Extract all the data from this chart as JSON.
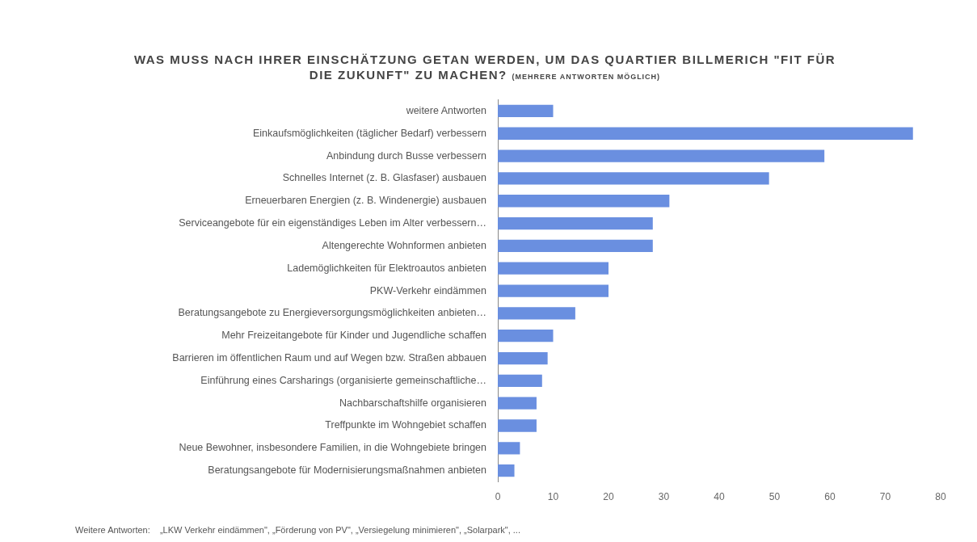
{
  "chart_data": {
    "type": "bar",
    "orientation": "horizontal",
    "title": "WAS MUSS NACH IHRER EINSCHÄTZUNG GETAN WERDEN, UM DAS QUARTIER BILLMERICH \"FIT FÜR DIE ZUKUNFT\" ZU MACHEN?",
    "subtitle": "(MEHRERE ANTWORTEN MÖGLICH)",
    "categories": [
      "weitere Antworten",
      "Einkaufsmöglichkeiten (täglicher Bedarf) verbessern",
      "Anbindung durch Busse verbessern",
      "Schnelles Internet (z. B. Glasfaser) ausbauen",
      "Erneuerbaren Energien (z. B. Windenergie) ausbauen",
      "Serviceangebote für ein eigenständiges Leben im Alter verbessern…",
      "Altengerechte Wohnformen anbieten",
      "Lademöglichkeiten für Elektroautos anbieten",
      "PKW-Verkehr eindämmen",
      "Beratungsangebote zu Energieversorgungsmöglichkeiten anbieten…",
      "Mehr Freizeitangebote für Kinder und Jugendliche schaffen",
      "Barrieren im öffentlichen Raum und auf Wegen bzw. Straßen abbauen",
      "Einführung eines Carsharings (organisierte gemeinschaftliche…",
      "Nachbarschaftshilfe organisieren",
      "Treffpunkte im Wohngebiet schaffen",
      "Neue Bewohner, insbesondere Familien, in die Wohngebiete bringen",
      "Beratungsangebote für Modernisierungsmaßnahmen anbieten"
    ],
    "values": [
      10,
      75,
      59,
      49,
      31,
      28,
      28,
      20,
      20,
      14,
      10,
      9,
      8,
      7,
      7,
      4,
      3
    ],
    "color": "#6a8fe0",
    "xlim": [
      0,
      80
    ],
    "xticks": [
      0,
      10,
      20,
      30,
      40,
      50,
      60,
      70,
      80
    ],
    "grid": false,
    "legend": false,
    "annotations": [
      "Weitere Antworten:    „LKW Verkehr eindämmen\", „Förderung von PV\", „Versiegelung minimieren\", „Solarpark\", ..."
    ]
  }
}
